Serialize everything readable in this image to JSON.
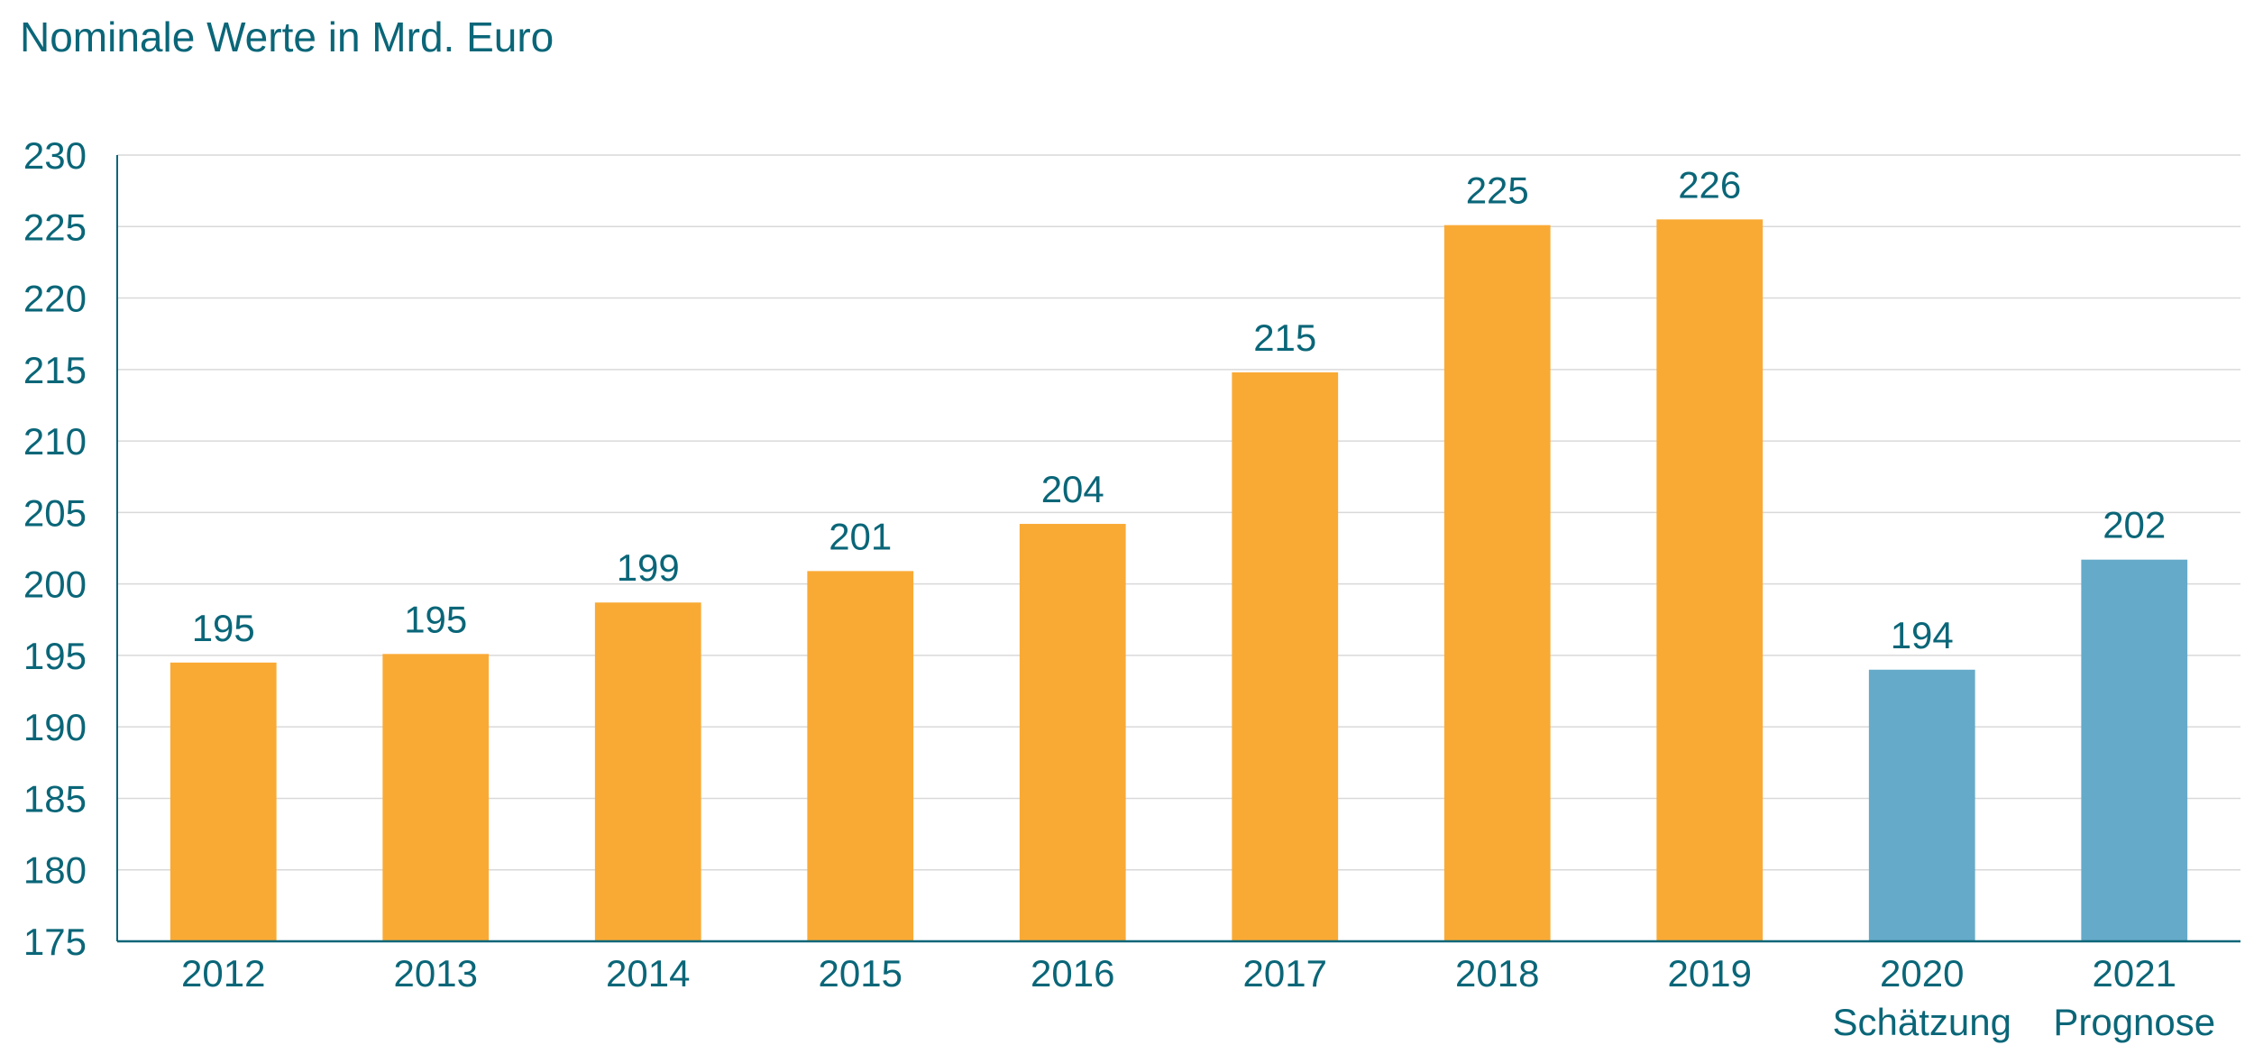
{
  "chart_data": {
    "type": "bar",
    "title": "Nominale Werte in Mrd. Euro",
    "categories": [
      "2012",
      "2013",
      "2014",
      "2015",
      "2016",
      "2017",
      "2018",
      "2019",
      "2020",
      "2021"
    ],
    "sublabels": [
      "",
      "",
      "",
      "",
      "",
      "",
      "",
      "",
      "Schätzung",
      "Prognose"
    ],
    "values": [
      194.5,
      195.1,
      198.7,
      200.9,
      204.2,
      214.8,
      225.1,
      225.5,
      194.0,
      201.7
    ],
    "data_labels": [
      "195",
      "195",
      "199",
      "201",
      "204",
      "215",
      "225",
      "226",
      "194",
      "202"
    ],
    "bar_colors": [
      "#f9aa35",
      "#f9aa35",
      "#f9aa35",
      "#f9aa35",
      "#f9aa35",
      "#f9aa35",
      "#f9aa35",
      "#f9aa35",
      "#66aac9",
      "#66aac9"
    ],
    "xlabel": "",
    "ylabel": "",
    "ylim": [
      175,
      230
    ],
    "yticks": [
      175,
      180,
      185,
      190,
      195,
      200,
      205,
      210,
      215,
      220,
      225,
      230
    ],
    "grid": true,
    "colors": {
      "text": "#0a6678",
      "axis": "#0a6678",
      "grid": "#d9d9d9"
    }
  }
}
